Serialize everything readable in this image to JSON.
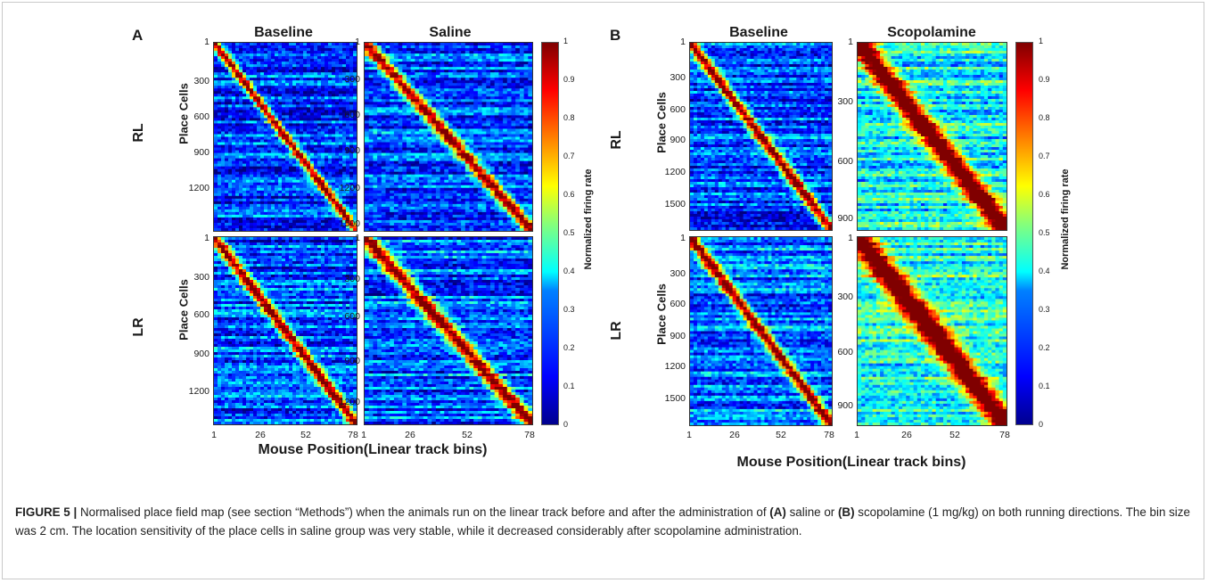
{
  "panels": {
    "A": {
      "letter": "A",
      "col_titles": [
        "Baseline",
        "Saline"
      ],
      "row_labels": [
        "RL",
        "LR"
      ],
      "ytick_labels": {
        "rl_baseline": [
          "1",
          "300",
          "600",
          "900",
          "1200"
        ],
        "rl_saline": [
          "1",
          "300",
          "600",
          "900",
          "1200",
          "1500"
        ],
        "lr_baseline": [
          "1",
          "300",
          "600",
          "900",
          "1200"
        ],
        "lr_saline": [
          "1",
          "300",
          "600",
          "900",
          "1200"
        ]
      },
      "xtick_labels": [
        "1",
        "26",
        "52",
        "78"
      ],
      "ytitle": "Place Cells",
      "xtitle": "Mouse Position(Linear track bins)",
      "colorbar_title": "Normalized firing rate",
      "colorbar_ticks": [
        "1",
        "0.9",
        "0.8",
        "0.7",
        "0.6",
        "0.5",
        "0.4",
        "0.3",
        "0.2",
        "0.1",
        "0"
      ]
    },
    "B": {
      "letter": "B",
      "col_titles": [
        "Baseline",
        "Scopolamine"
      ],
      "row_labels": [
        "RL",
        "LR"
      ],
      "ytick_labels": {
        "rl_baseline": [
          "1",
          "300",
          "600",
          "900",
          "1200",
          "1500"
        ],
        "rl_scop": [
          "1",
          "300",
          "600",
          "900"
        ],
        "lr_baseline": [
          "1",
          "300",
          "600",
          "900",
          "1200",
          "1500"
        ],
        "lr_scop": [
          "1",
          "300",
          "600",
          "900"
        ]
      },
      "xtick_labels": [
        "1",
        "26",
        "52",
        "78"
      ],
      "ytitle": "Place Cells",
      "xtitle": "Mouse Position(Linear track bins)",
      "colorbar_title": "Normalized firing rate",
      "colorbar_ticks": [
        "1",
        "0.9",
        "0.8",
        "0.7",
        "0.6",
        "0.5",
        "0.4",
        "0.3",
        "0.2",
        "0.1",
        "0"
      ]
    }
  },
  "caption": {
    "label": "FIGURE 5 |",
    "part1": " Normalised place field map (see section “Methods”) when the animals run on the linear track before and after the administration of ",
    "bold_a": "(A)",
    "part2": " saline or ",
    "bold_b": "(B)",
    "part3": " scopolamine (1 mg/kg) on both running directions. The bin size was 2 cm. The location sensitivity of the place cells in saline group was very stable, while it decreased considerably after scopolamine administration."
  },
  "colors": {
    "jet_low": "#00008f",
    "jet_high": "#800000"
  }
}
